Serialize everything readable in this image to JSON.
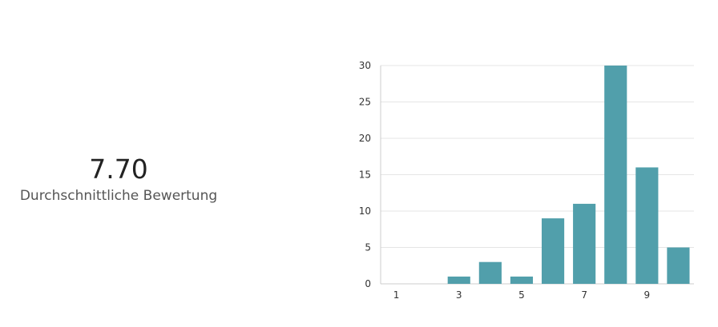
{
  "summary": {
    "average_value": "7.70",
    "average_caption": "Durchschnittliche Bewertung"
  },
  "colors": {
    "bar": "#519fab",
    "grid": "#e5e5e5",
    "axis": "#cccccc"
  },
  "chart_data": {
    "type": "bar",
    "categories": [
      "1",
      "2",
      "3",
      "4",
      "5",
      "6",
      "7",
      "8",
      "9",
      "10"
    ],
    "x_tick_labels": [
      "1",
      "3",
      "5",
      "7",
      "9"
    ],
    "values": [
      0,
      0,
      1,
      3,
      1,
      9,
      11,
      30,
      16,
      5
    ],
    "y_ticks": [
      0,
      5,
      10,
      15,
      20,
      25,
      30
    ],
    "ylim": [
      0,
      30
    ],
    "title": "",
    "xlabel": "",
    "ylabel": "",
    "grid": true,
    "legend": "none"
  }
}
